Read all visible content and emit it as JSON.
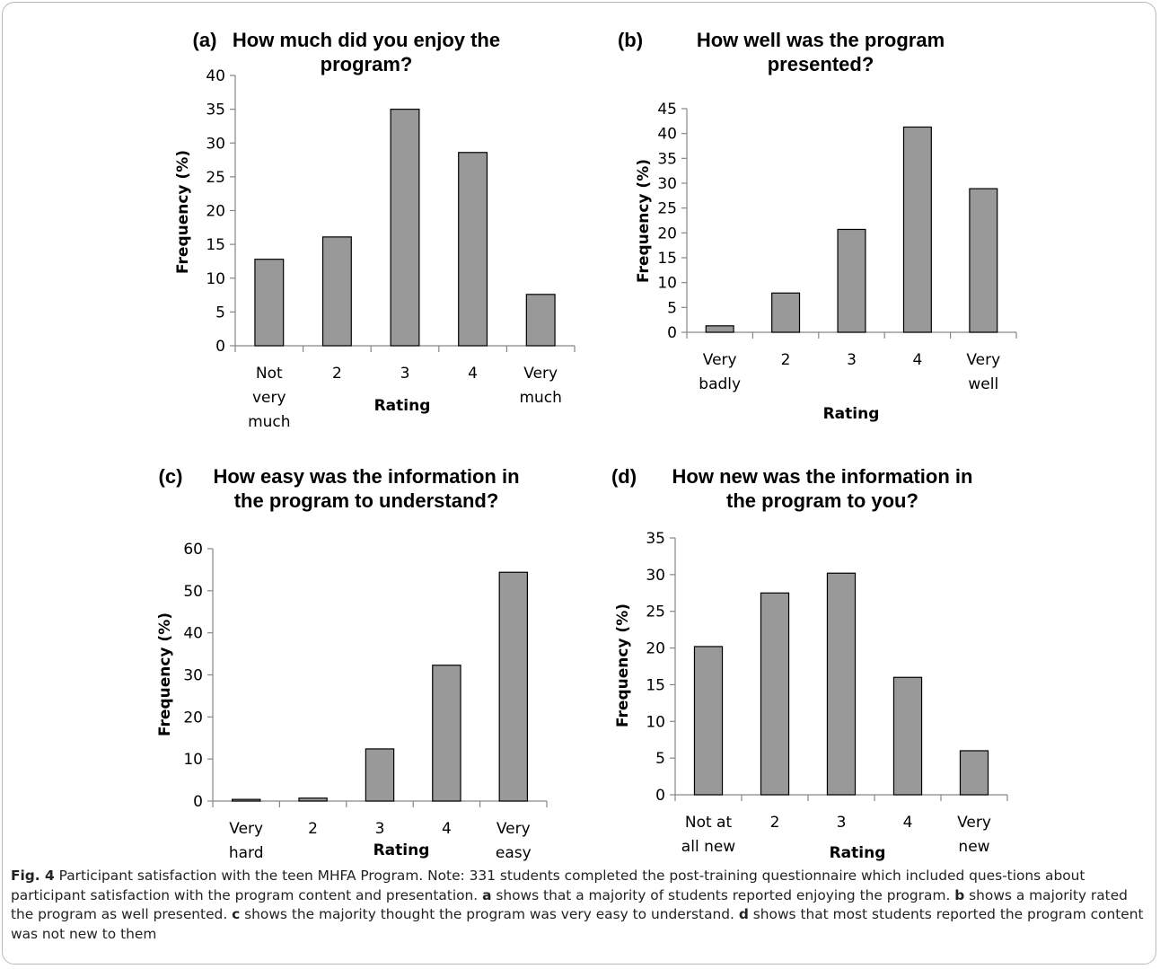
{
  "chart_data": [
    {
      "type": "bar",
      "panel_label": "(a)",
      "title": [
        "How much did you enjoy the",
        "program?"
      ],
      "categories": [
        [
          "Not",
          "very",
          "much"
        ],
        [
          "2"
        ],
        [
          "3"
        ],
        [
          "4"
        ],
        [
          "Very",
          "much"
        ]
      ],
      "values": [
        12.8,
        16.1,
        35.0,
        28.6,
        7.6
      ],
      "xlabel": "Rating",
      "ylabel": "Frequency (%)",
      "ylim": [
        0,
        40
      ],
      "yticks": [
        0,
        5,
        10,
        15,
        20,
        25,
        30,
        35,
        40
      ]
    },
    {
      "type": "bar",
      "panel_label": "(b)",
      "title": [
        "How well was the program",
        "presented?"
      ],
      "categories": [
        [
          "Very",
          "badly"
        ],
        [
          "2"
        ],
        [
          "3"
        ],
        [
          "4"
        ],
        [
          "Very",
          "well"
        ]
      ],
      "values": [
        1.3,
        7.9,
        20.7,
        41.3,
        28.9
      ],
      "xlabel": "Rating",
      "ylabel": "Frequency (%)",
      "ylim": [
        0,
        45
      ],
      "yticks": [
        0,
        5,
        10,
        15,
        20,
        25,
        30,
        35,
        40,
        45
      ]
    },
    {
      "type": "bar",
      "panel_label": "(c)",
      "title": [
        "How easy was the information in",
        "the program to understand?"
      ],
      "categories": [
        [
          "Very",
          "hard"
        ],
        [
          "2"
        ],
        [
          "3"
        ],
        [
          "4"
        ],
        [
          "Very",
          "easy"
        ]
      ],
      "values": [
        0.4,
        0.7,
        12.4,
        32.3,
        54.4
      ],
      "xlabel": "Rating",
      "ylabel": "Frequency (%)",
      "ylim": [
        0,
        60
      ],
      "yticks": [
        0,
        10,
        20,
        30,
        40,
        50,
        60
      ]
    },
    {
      "type": "bar",
      "panel_label": "(d)",
      "title": [
        "How new was the information in",
        "the program to you?"
      ],
      "categories": [
        [
          "Not at",
          "all new"
        ],
        [
          "2"
        ],
        [
          "3"
        ],
        [
          "4"
        ],
        [
          "Very",
          "new"
        ]
      ],
      "values": [
        20.2,
        27.5,
        30.2,
        16.0,
        6.0
      ],
      "xlabel": "Rating",
      "ylabel": "Frequency (%)",
      "ylim": [
        0,
        35
      ],
      "yticks": [
        0,
        5,
        10,
        15,
        20,
        25,
        30,
        35
      ]
    }
  ],
  "caption": {
    "fig_label": "Fig. 4",
    "text_1": "  Participant satisfaction with the teen MHFA Program. Note: 331 students completed the post-training questionnaire which included ques-tions about participant satisfaction with the program content and presentation. ",
    "a": "a",
    "text_a": " shows that a majority of students reported enjoying the program. ",
    "b": "b",
    "text_b": " shows a majority rated the program as well presented. ",
    "c": "c",
    "text_c": " shows the majority thought the program was very easy to understand. ",
    "d": "d",
    "text_d": " shows that most students reported the program content was not new to them"
  },
  "colors": {
    "bar_fill": "#999999",
    "bar_stroke": "#000000",
    "axis": "#868686"
  }
}
